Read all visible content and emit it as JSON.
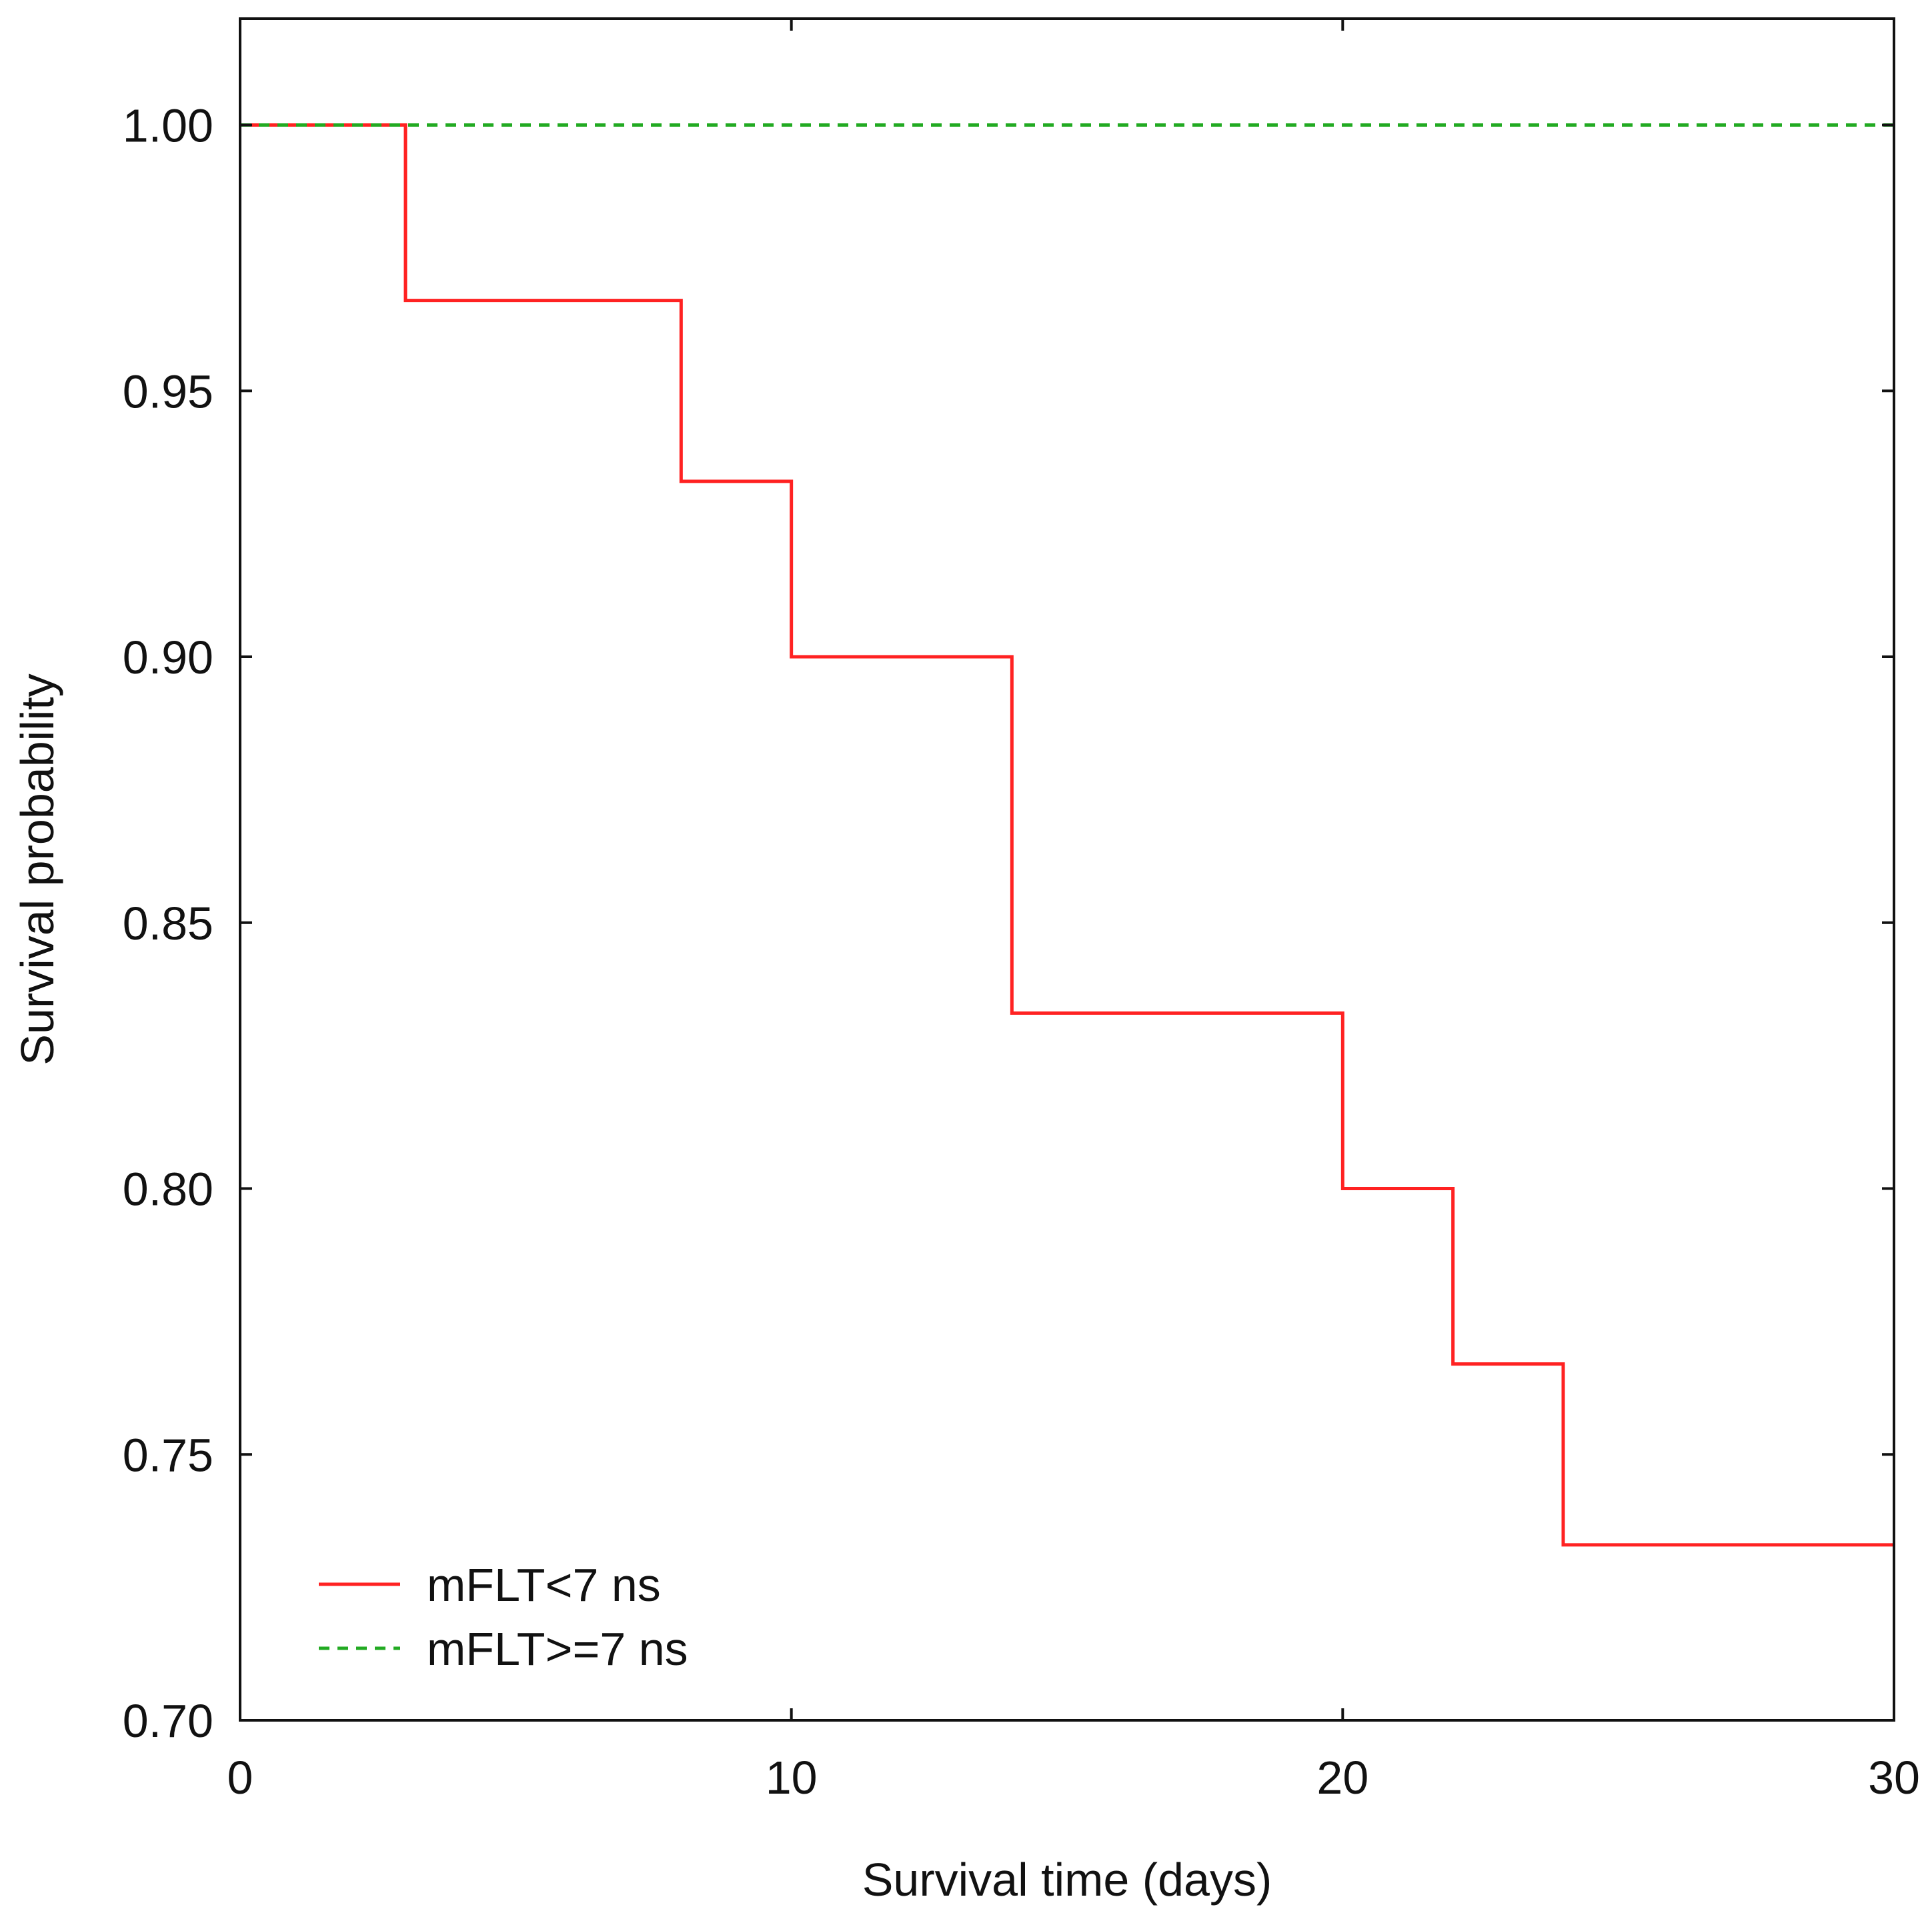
{
  "chart_data": {
    "type": "line",
    "chart_kind": "kaplan-meier step plot",
    "title": "",
    "xlabel": "Survival time (days)",
    "ylabel": "Survival probability",
    "xlim": [
      0,
      30
    ],
    "ylim": [
      0.7,
      1.02
    ],
    "x_ticks": [
      0,
      10,
      20,
      30
    ],
    "x_tick_labels": [
      "0",
      "10",
      "20",
      "30"
    ],
    "y_ticks": [
      0.7,
      0.75,
      0.8,
      0.85,
      0.9,
      0.95,
      1.0
    ],
    "y_tick_labels": [
      "0.70",
      "0.75",
      "0.80",
      "0.85",
      "0.90",
      "0.95",
      "1.00"
    ],
    "grid": false,
    "legend_position": "bottom-left",
    "series": [
      {
        "name": "mFLT<7 ns",
        "color": "#ff2222",
        "style": "solid",
        "step": true,
        "x": [
          0,
          3,
          8,
          10,
          14,
          20,
          22,
          24,
          30
        ],
        "y": [
          1.0,
          0.967,
          0.933,
          0.9,
          0.833,
          0.8,
          0.767,
          0.733,
          0.733
        ]
      },
      {
        "name": "mFLT>=7 ns",
        "color": "#22aa22",
        "style": "dashed",
        "step": true,
        "x": [
          0,
          30
        ],
        "y": [
          1.0,
          1.0
        ]
      }
    ]
  }
}
